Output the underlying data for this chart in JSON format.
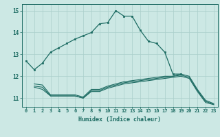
{
  "background_color": "#cce8e4",
  "grid_color": "#aacfcb",
  "line_color": "#1c6b62",
  "xlim": [
    -0.5,
    23.5
  ],
  "ylim": [
    10.6,
    15.3
  ],
  "yticks": [
    11,
    12,
    13,
    14,
    15
  ],
  "xticks": [
    0,
    1,
    2,
    3,
    4,
    5,
    6,
    7,
    8,
    9,
    10,
    11,
    12,
    13,
    14,
    15,
    16,
    17,
    18,
    19,
    20,
    21,
    22,
    23
  ],
  "xlabel": "Humidex (Indice chaleur)",
  "series": [
    {
      "x": [
        0,
        1,
        2,
        3,
        4,
        5,
        6,
        7,
        8,
        9,
        10,
        11,
        12,
        13,
        14,
        15,
        16,
        17,
        18,
        19
      ],
      "y": [
        12.7,
        12.3,
        12.6,
        13.1,
        13.3,
        13.5,
        13.7,
        13.85,
        14.0,
        14.4,
        14.45,
        15.0,
        14.75,
        14.75,
        14.1,
        13.6,
        13.5,
        13.1,
        12.1,
        12.1
      ],
      "marker": true
    },
    {
      "x": [
        1,
        2,
        3,
        4,
        5,
        6,
        7,
        8,
        9,
        10,
        11,
        12,
        13,
        14,
        15,
        16,
        17,
        18,
        19,
        20,
        21,
        22,
        23
      ],
      "y": [
        11.65,
        11.6,
        11.15,
        11.15,
        11.15,
        11.15,
        11.05,
        11.4,
        11.4,
        11.55,
        11.65,
        11.75,
        11.8,
        11.85,
        11.9,
        11.95,
        12.0,
        12.0,
        12.1,
        12.0,
        11.4,
        10.9,
        10.75
      ],
      "marker": false
    },
    {
      "x": [
        1,
        2,
        3,
        4,
        5,
        6,
        7,
        8,
        9,
        10,
        11,
        12,
        13,
        14,
        15,
        16,
        17,
        18,
        19,
        20,
        21,
        22,
        23
      ],
      "y": [
        11.55,
        11.5,
        11.1,
        11.1,
        11.1,
        11.1,
        11.0,
        11.35,
        11.35,
        11.5,
        11.6,
        11.7,
        11.75,
        11.8,
        11.85,
        11.9,
        11.95,
        12.0,
        12.05,
        11.95,
        11.35,
        10.85,
        10.72
      ],
      "marker": false
    },
    {
      "x": [
        1,
        2,
        3,
        4,
        5,
        6,
        7,
        8,
        9,
        10,
        11,
        12,
        13,
        14,
        15,
        16,
        17,
        18,
        19,
        20,
        21,
        22,
        23
      ],
      "y": [
        11.5,
        11.4,
        11.1,
        11.1,
        11.1,
        11.1,
        11.0,
        11.3,
        11.3,
        11.45,
        11.55,
        11.65,
        11.7,
        11.75,
        11.8,
        11.85,
        11.9,
        11.95,
        12.0,
        11.9,
        11.3,
        10.8,
        10.7
      ],
      "marker": false
    }
  ]
}
